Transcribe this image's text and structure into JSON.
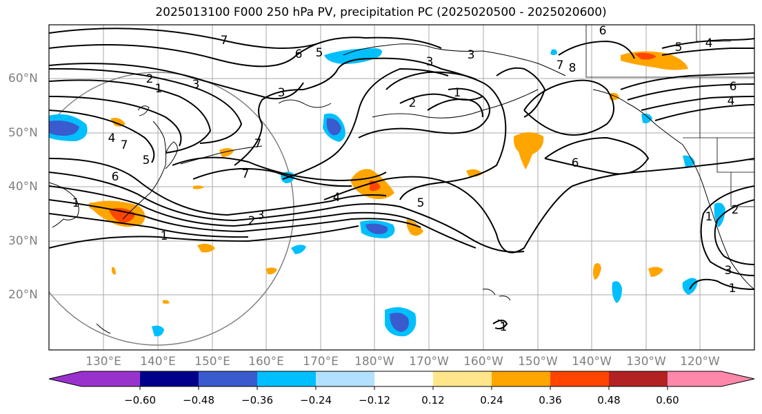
{
  "title": "2025013100 F000 250 hPa PV, precipitation PC (2025020500 - 2025020600)",
  "lat_labels": [
    "60°N",
    "50°N",
    "40°N",
    "30°N",
    "20°N"
  ],
  "lon_labels": [
    "130°E",
    "140°E",
    "150°E",
    "160°E",
    "170°E",
    "180°W",
    "170°W",
    "160°W",
    "150°W",
    "140°W",
    "130°W",
    "120°W"
  ],
  "colorbar": {
    "ticks": [
      "−0.60",
      "−0.48",
      "−0.36",
      "−0.24",
      "−0.12",
      "0.12",
      "0.24",
      "0.36",
      "0.48",
      "0.60"
    ],
    "colors": [
      "#9932cc",
      "#00008b",
      "#3a5bcd",
      "#00bfff",
      "#b2e0ff",
      "#ffffff",
      "#ffe68a",
      "#ffa500",
      "#ff4500",
      "#b22222",
      "#ff88aa"
    ]
  },
  "contour_labels": [
    "7",
    "6",
    "5",
    "3",
    "3",
    "3",
    "2",
    "1",
    "3",
    "2",
    "1",
    "7",
    "8",
    "6",
    "5",
    "4",
    "6",
    "4",
    "7",
    "5",
    "4",
    "6",
    "1",
    "7",
    "7",
    "4",
    "5",
    "3",
    "2",
    "1",
    "6",
    "2",
    "3",
    "1",
    "1",
    "1"
  ]
}
